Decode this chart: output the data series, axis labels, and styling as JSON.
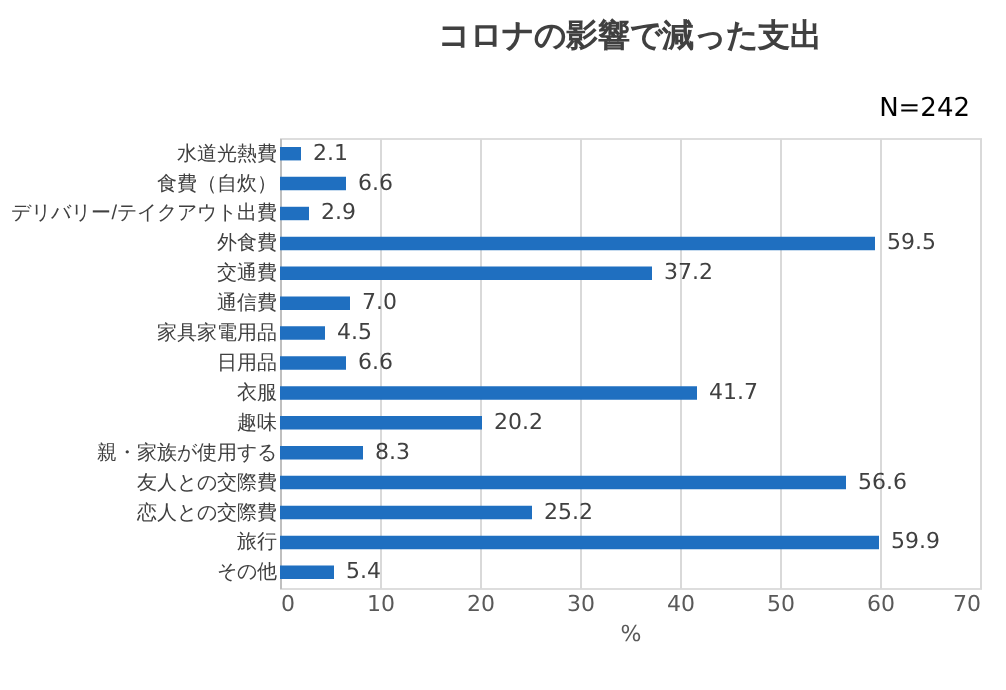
{
  "chart_data": {
    "type": "bar",
    "orientation": "horizontal",
    "title": "コロナの影響で減った支出",
    "categories": [
      "水道光熱費",
      "食費（自炊）",
      "デリバリー/テイクアウト出費",
      "外食費",
      "交通費",
      "通信費",
      "家具家電用品",
      "日用品",
      "衣服",
      "趣味",
      "親・家族が使用する",
      "友人との交際費",
      "恋人との交際費",
      "旅行",
      "その他"
    ],
    "values": [
      2.1,
      6.6,
      2.9,
      59.5,
      37.2,
      7.0,
      4.5,
      6.6,
      41.7,
      20.2,
      8.3,
      56.6,
      25.2,
      59.9,
      5.4
    ],
    "value_labels": [
      "2.1",
      "6.6",
      "2.9",
      "59.5",
      "37.2",
      "7.0",
      "4.5",
      "6.6",
      "41.7",
      "20.2",
      "8.3",
      "56.6",
      "25.2",
      "59.9",
      "5.4"
    ],
    "color": "#1f6fc0",
    "xlabel": "%",
    "xlim": [
      0,
      70
    ],
    "xticks": [
      0,
      10,
      20,
      30,
      40,
      50,
      60,
      70
    ],
    "grid": "x",
    "annotations": [
      "N=242"
    ]
  }
}
